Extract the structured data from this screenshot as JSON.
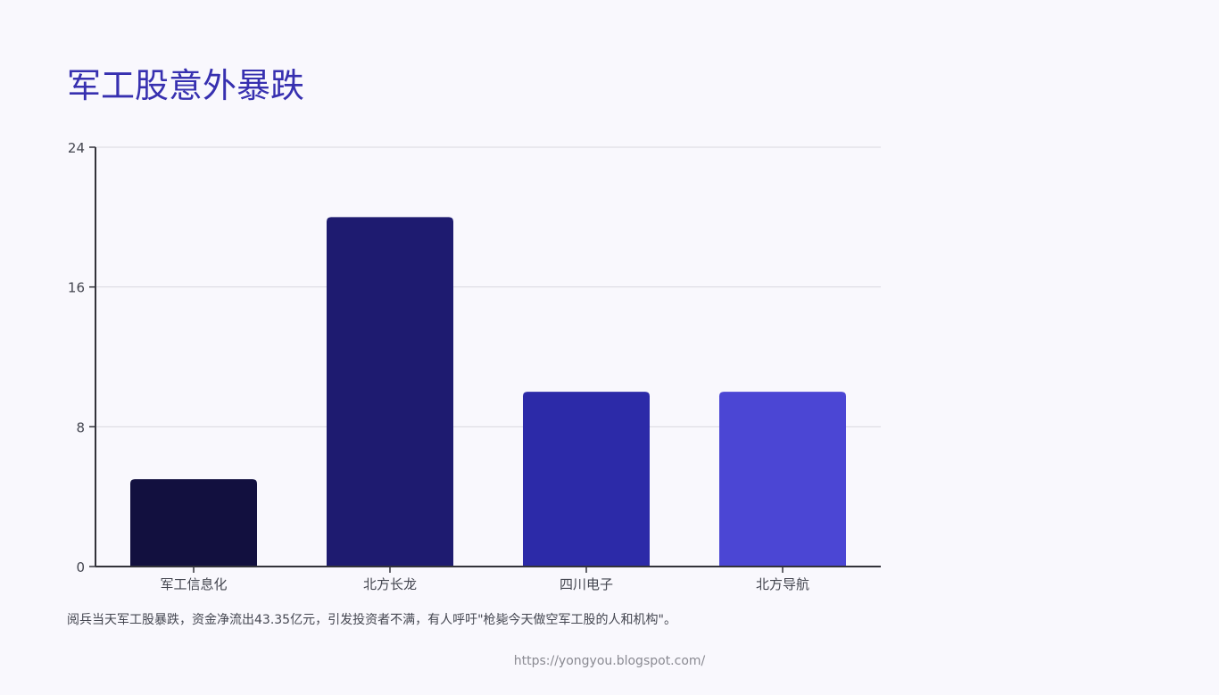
{
  "title": "军工股意外暴跌",
  "caption": "阅兵当天军工股暴跌，资金净流出43.35亿元，引发投资者不满，有人呼吁\"枪毙今天做空军工股的人和机构\"。",
  "footer": "https://yongyou.blogspot.com/",
  "colors": {
    "title": "#3730b0",
    "bars": [
      "#12103f",
      "#1e1b70",
      "#2c2aa8",
      "#4b46d4"
    ],
    "grid": "#d9d9df",
    "axis": "#33333a",
    "tick_text": "#444650"
  },
  "chart_data": {
    "type": "bar",
    "categories": [
      "军工信息化",
      "北方长龙",
      "四川电子",
      "北方导航"
    ],
    "values": [
      5,
      20,
      10,
      10
    ],
    "yticks": [
      0,
      8,
      16,
      24
    ],
    "ylim": [
      0,
      24
    ],
    "xlabel": "",
    "ylabel": "",
    "grid": true
  }
}
